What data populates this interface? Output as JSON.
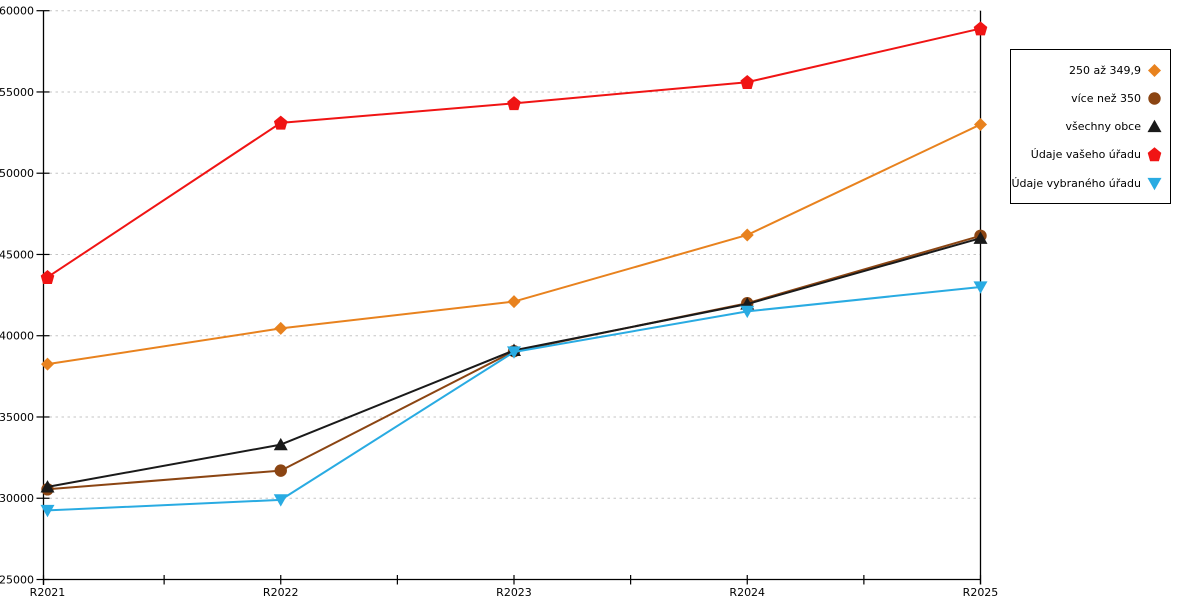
{
  "chart_data": {
    "type": "line",
    "title": "",
    "xlabel": "",
    "ylabel": "",
    "categories": [
      "R2021",
      "R2022",
      "R2023",
      "R2024",
      "R2025"
    ],
    "y_axis": {
      "min": 25000,
      "max": 60000,
      "step": 5000,
      "tick_labels": [
        "25000",
        "30000",
        "35000",
        "40000",
        "45000",
        "50000",
        "55000",
        "60000"
      ]
    },
    "grid": "horizontal-dashed",
    "legend_position": "right-box",
    "series": [
      {
        "name": "250 až 349,9",
        "color": "#E8821E",
        "marker": "diamond",
        "values": [
          38250,
          40450,
          42100,
          46200,
          53000
        ]
      },
      {
        "name": "více než 350",
        "color": "#8B4513",
        "marker": "circle",
        "values": [
          30550,
          31700,
          39050,
          42000,
          46150
        ]
      },
      {
        "name": "všechny obce",
        "color": "#1A1A1A",
        "marker": "triangle-up",
        "values": [
          30700,
          33300,
          39100,
          41950,
          46000
        ]
      },
      {
        "name": "Údaje vašeho úřadu",
        "color": "#F01414",
        "marker": "pentagon",
        "values": [
          43600,
          53100,
          54300,
          55600,
          58900
        ]
      },
      {
        "name": "Údaje vybraného úřadu",
        "color": "#29ABE2",
        "marker": "triangle-down",
        "values": [
          29250,
          29900,
          39000,
          41500,
          43000
        ]
      }
    ],
    "axis_color": "#000000",
    "gridline_color": "#C6C6C6"
  }
}
